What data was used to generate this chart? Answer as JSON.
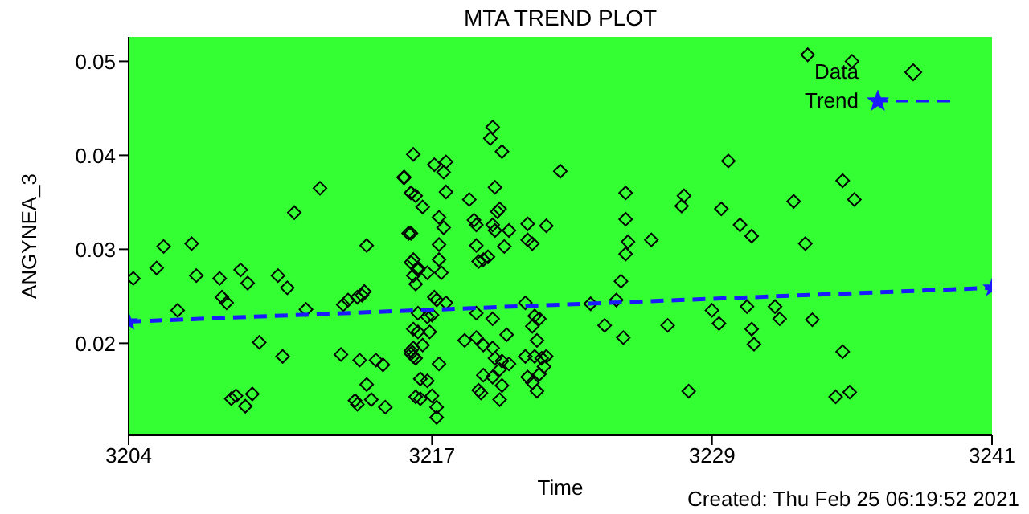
{
  "chart_data": {
    "type": "scatter",
    "title": "MTA TREND PLOT",
    "xlabel": "Time",
    "ylabel": "ANGYNEA_3",
    "annotations": [
      "Created: Thu Feb 25 06:19:52 2021"
    ],
    "xlim": [
      3204,
      3241
    ],
    "xticks": [
      3204,
      3217,
      3229,
      3241
    ],
    "ylim": [
      0.0102,
      0.0526
    ],
    "yticks": [
      0.02,
      0.03,
      0.04,
      0.05
    ],
    "legend": "top right",
    "series": [
      {
        "name": "Data",
        "color": "#000000",
        "marker": "diamond",
        "x": [
          3204.2,
          3205.2,
          3205.5,
          3206.7,
          3206.9,
          3206.1,
          3207.9,
          3208.0,
          3208.2,
          3208.8,
          3209.1,
          3209.6,
          3208.4,
          3208.6,
          3209.0,
          3209.3,
          3210.4,
          3210.8,
          3210.6,
          3211.1,
          3211.6,
          3212.2,
          3213.1,
          3213.2,
          3213.4,
          3213.7,
          3213.8,
          3213.9,
          3213.8,
          3214.0,
          3214.1,
          3214.2,
          3214.2,
          3214.4,
          3214.6,
          3214.9,
          3215.0,
          3215.8,
          3216.1,
          3216.1,
          3216.2,
          3216.1,
          3216.2,
          3216.2,
          3216.1,
          3216.2,
          3216.3,
          3217.1,
          3217.6,
          3217.5,
          3215.8,
          3216.1,
          3216.3,
          3216.6,
          3217.6,
          3217.3,
          3217.5,
          3216.0,
          3217.3,
          3216.2,
          3216.4,
          3217.3,
          3217.4,
          3216.4,
          3216.8,
          3216.3,
          3217.1,
          3217.2,
          3217.6,
          3216.4,
          3216.8,
          3217.0,
          3216.4,
          3216.9,
          3216.2,
          3216.6,
          3216.1,
          3216.3,
          3217.3,
          3216.8,
          3216.5,
          3216.5,
          3217.0,
          3217.2,
          3217.2,
          3219.6,
          3219.5,
          3220.0,
          3218.6,
          3219.7,
          3219.9,
          3219.8,
          3218.8,
          3218.9,
          3219.6,
          3219.7,
          3220.3,
          3218.9,
          3220.1,
          3219.2,
          3219.0,
          3219.4,
          3221.1,
          3221.9,
          3221.1,
          3221.3,
          3222.5,
          3218.9,
          3219.6,
          3220.2,
          3218.4,
          3218.9,
          3219.2,
          3219.6,
          3219.7,
          3220.0,
          3220.3,
          3219.9,
          3219.6,
          3220.0,
          3219.9,
          3219.2,
          3219.0,
          3219.1,
          3221.0,
          3221.4,
          3221.6,
          3221.3,
          3221.5,
          3221.0,
          3221.4,
          3221.7,
          3221.8,
          3221.6,
          3221.1,
          3221.3,
          3221.5,
          3221.9,
          3223.8,
          3233.1,
          3235.0,
          3229.7,
          3234.6,
          3235.1,
          3225.3,
          3227.8,
          3227.7,
          3232.5,
          3229.4,
          3230.2,
          3230.7,
          3226.4,
          3225.4,
          3225.3,
          3225.3,
          3233.0,
          3225.1,
          3224.9,
          3224.4,
          3225.2,
          3227.1,
          3229.0,
          3229.3,
          3230.5,
          3231.7,
          3231.9,
          3233.3,
          3230.7,
          3230.8,
          3234.6,
          3228.0,
          3234.3,
          3234.9
        ],
        "values": [
          0.0269,
          0.028,
          0.0303,
          0.0306,
          0.0272,
          0.0235,
          0.0269,
          0.0249,
          0.0243,
          0.0278,
          0.0264,
          0.0201,
          0.0141,
          0.0144,
          0.0133,
          0.0146,
          0.0272,
          0.0259,
          0.0186,
          0.0339,
          0.0236,
          0.0365,
          0.0188,
          0.0241,
          0.0246,
          0.0139,
          0.0135,
          0.0182,
          0.0249,
          0.0251,
          0.0255,
          0.0156,
          0.0304,
          0.014,
          0.0182,
          0.0177,
          0.0132,
          0.0377,
          0.0317,
          0.036,
          0.0401,
          0.0286,
          0.0272,
          0.0215,
          0.0192,
          0.0186,
          0.0143,
          0.039,
          0.0393,
          0.0382,
          0.0376,
          0.036,
          0.0357,
          0.0345,
          0.0361,
          0.0334,
          0.0323,
          0.0317,
          0.0305,
          0.0289,
          0.028,
          0.0289,
          0.0275,
          0.0278,
          0.0275,
          0.0263,
          0.0249,
          0.0246,
          0.0243,
          0.0232,
          0.0228,
          0.023,
          0.0212,
          0.0212,
          0.0195,
          0.0198,
          0.0189,
          0.0184,
          0.0178,
          0.016,
          0.0162,
          0.0141,
          0.0144,
          0.0132,
          0.0121,
          0.043,
          0.0418,
          0.0404,
          0.0353,
          0.0366,
          0.0343,
          0.034,
          0.0331,
          0.0326,
          0.0326,
          0.032,
          0.032,
          0.0304,
          0.0303,
          0.0289,
          0.0287,
          0.0292,
          0.0327,
          0.0325,
          0.031,
          0.0306,
          0.0383,
          0.0232,
          0.0226,
          0.0209,
          0.0203,
          0.0206,
          0.0198,
          0.0195,
          0.0184,
          0.0181,
          0.0178,
          0.0172,
          0.0164,
          0.0155,
          0.014,
          0.0166,
          0.015,
          0.0147,
          0.0243,
          0.0229,
          0.0226,
          0.0218,
          0.0203,
          0.0186,
          0.0186,
          0.0184,
          0.0175,
          0.0167,
          0.0164,
          0.0158,
          0.0149,
          0.0186,
          0.0242,
          0.0507,
          0.05,
          0.0394,
          0.0373,
          0.0353,
          0.036,
          0.0357,
          0.0346,
          0.0351,
          0.0343,
          0.0326,
          0.0314,
          0.031,
          0.0308,
          0.0295,
          0.0332,
          0.0306,
          0.0266,
          0.0246,
          0.0219,
          0.0206,
          0.0219,
          0.0235,
          0.0221,
          0.0239,
          0.0239,
          0.0226,
          0.0225,
          0.0215,
          0.0199,
          0.0191,
          0.0149,
          0.0143,
          0.0148
        ]
      },
      {
        "name": "Trend",
        "type": "line",
        "color": "#1a1aff",
        "marker": "star",
        "line_style": "dashed",
        "x": [
          3204,
          3241
        ],
        "values": [
          0.0223,
          0.0259
        ]
      }
    ]
  }
}
